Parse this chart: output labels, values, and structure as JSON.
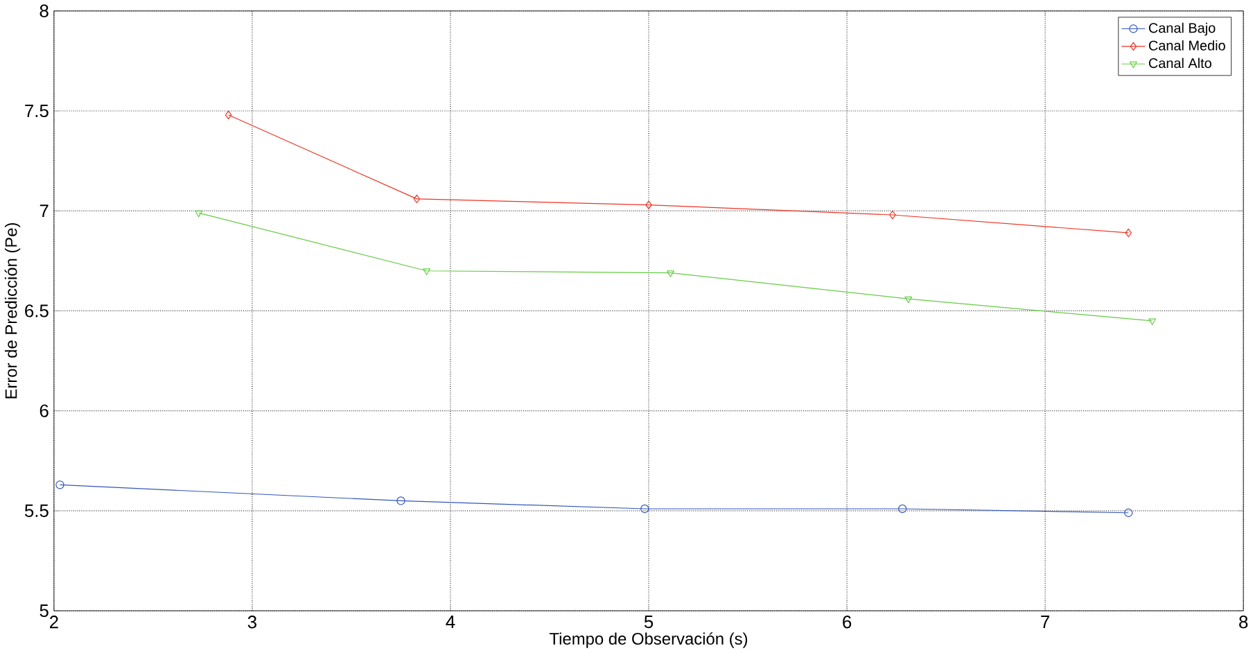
{
  "chart_data": {
    "type": "line",
    "xlabel": "Tiempo de Observación (s)",
    "ylabel": "Error de Predicción (Pe)",
    "xlim": [
      2,
      8
    ],
    "xticks": [
      2,
      3,
      4,
      5,
      6,
      7,
      8
    ],
    "ylim": [
      5,
      8
    ],
    "yticks": [
      5,
      5.5,
      6,
      6.5,
      7,
      7.5,
      8
    ],
    "grid": true,
    "legend": "top right",
    "series": [
      {
        "name": "Canal Bajo",
        "color": "#3355bb",
        "marker": "circle",
        "x": [
          2.03,
          3.75,
          4.98,
          6.28,
          7.42
        ],
        "values": [
          5.63,
          5.55,
          5.51,
          5.51,
          5.49
        ]
      },
      {
        "name": "Canal Medio",
        "color": "#ee3322",
        "marker": "diamond",
        "x": [
          2.88,
          3.83,
          5.0,
          6.23,
          7.42
        ],
        "values": [
          7.48,
          7.06,
          7.03,
          6.98,
          6.89
        ]
      },
      {
        "name": "Canal Alto",
        "color": "#66cc44",
        "marker": "triangle",
        "x": [
          2.73,
          3.88,
          5.11,
          6.31,
          7.54
        ],
        "values": [
          6.99,
          6.7,
          6.69,
          6.56,
          6.45
        ]
      }
    ]
  }
}
